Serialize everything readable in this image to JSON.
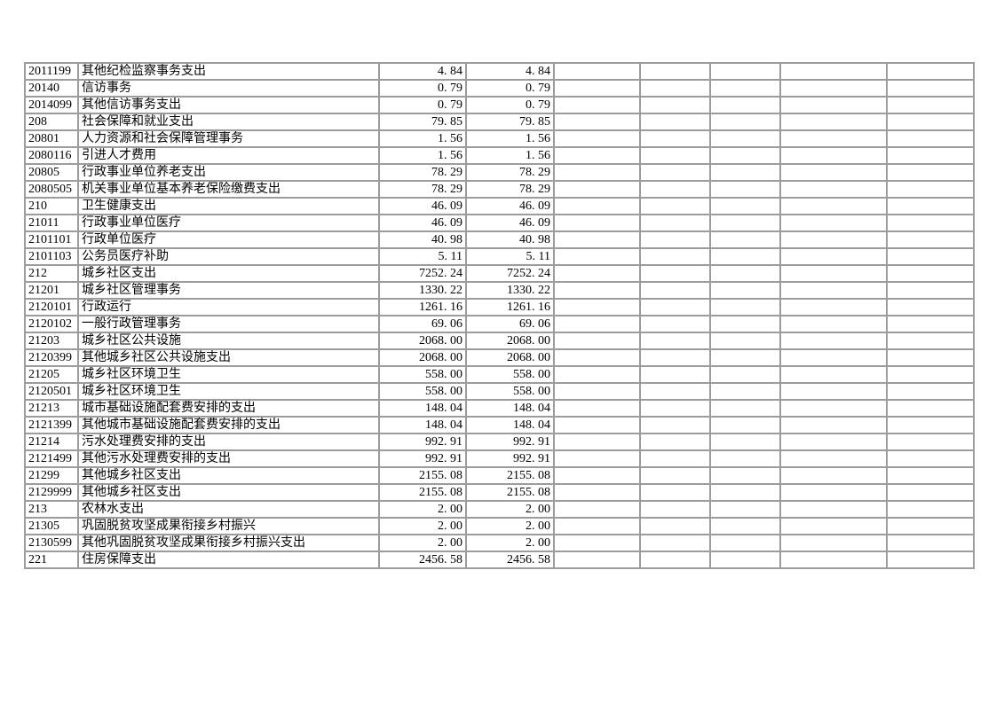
{
  "page": {
    "background_color": "#ffffff"
  },
  "table": {
    "grid_color": "#9c9c9c",
    "text_color": "#000000",
    "empty_column_count": 5,
    "rows": [
      {
        "code": "2011199",
        "name": "其他纪检监察事务支出",
        "amount1": "4.84",
        "amount2": "4.84"
      },
      {
        "code": "20140",
        "name": "信访事务",
        "amount1": "0.79",
        "amount2": "0.79"
      },
      {
        "code": "2014099",
        "name": "其他信访事务支出",
        "amount1": "0.79",
        "amount2": "0.79"
      },
      {
        "code": "208",
        "name": "社会保障和就业支出",
        "amount1": "79.85",
        "amount2": "79.85"
      },
      {
        "code": "20801",
        "name": "人力资源和社会保障管理事务",
        "amount1": "1.56",
        "amount2": "1.56"
      },
      {
        "code": "2080116",
        "name": "引进人才费用",
        "amount1": "1.56",
        "amount2": "1.56"
      },
      {
        "code": "20805",
        "name": "行政事业单位养老支出",
        "amount1": "78.29",
        "amount2": "78.29"
      },
      {
        "code": "2080505",
        "name": "机关事业单位基本养老保险缴费支出",
        "amount1": "78.29",
        "amount2": "78.29"
      },
      {
        "code": "210",
        "name": "卫生健康支出",
        "amount1": "46.09",
        "amount2": "46.09"
      },
      {
        "code": "21011",
        "name": "行政事业单位医疗",
        "amount1": "46.09",
        "amount2": "46.09"
      },
      {
        "code": "2101101",
        "name": "行政单位医疗",
        "amount1": "40.98",
        "amount2": "40.98"
      },
      {
        "code": "2101103",
        "name": "公务员医疗补助",
        "amount1": "5.11",
        "amount2": "5.11"
      },
      {
        "code": "212",
        "name": "城乡社区支出",
        "amount1": "7252.24",
        "amount2": "7252.24"
      },
      {
        "code": "21201",
        "name": "城乡社区管理事务",
        "amount1": "1330.22",
        "amount2": "1330.22"
      },
      {
        "code": "2120101",
        "name": "行政运行",
        "amount1": "1261.16",
        "amount2": "1261.16"
      },
      {
        "code": "2120102",
        "name": "一般行政管理事务",
        "amount1": "69.06",
        "amount2": "69.06"
      },
      {
        "code": "21203",
        "name": "城乡社区公共设施",
        "amount1": "2068.00",
        "amount2": "2068.00"
      },
      {
        "code": "2120399",
        "name": "其他城乡社区公共设施支出",
        "amount1": "2068.00",
        "amount2": "2068.00"
      },
      {
        "code": "21205",
        "name": "城乡社区环境卫生",
        "amount1": "558.00",
        "amount2": "558.00"
      },
      {
        "code": "2120501",
        "name": "城乡社区环境卫生",
        "amount1": "558.00",
        "amount2": "558.00"
      },
      {
        "code": "21213",
        "name": "城市基础设施配套费安排的支出",
        "amount1": "148.04",
        "amount2": "148.04"
      },
      {
        "code": "2121399",
        "name": "其他城市基础设施配套费安排的支出",
        "amount1": "148.04",
        "amount2": "148.04"
      },
      {
        "code": "21214",
        "name": "污水处理费安排的支出",
        "amount1": "992.91",
        "amount2": "992.91"
      },
      {
        "code": "2121499",
        "name": "其他污水处理费安排的支出",
        "amount1": "992.91",
        "amount2": "992.91"
      },
      {
        "code": "21299",
        "name": "其他城乡社区支出",
        "amount1": "2155.08",
        "amount2": "2155.08"
      },
      {
        "code": "2129999",
        "name": "其他城乡社区支出",
        "amount1": "2155.08",
        "amount2": "2155.08"
      },
      {
        "code": "213",
        "name": "农林水支出",
        "amount1": "2.00",
        "amount2": "2.00"
      },
      {
        "code": "21305",
        "name": "巩固脱贫攻坚成果衔接乡村振兴",
        "amount1": "2.00",
        "amount2": "2.00"
      },
      {
        "code": "2130599",
        "name": "其他巩固脱贫攻坚成果衔接乡村振兴支出",
        "amount1": "2.00",
        "amount2": "2.00"
      },
      {
        "code": "221",
        "name": "住房保障支出",
        "amount1": "2456.58",
        "amount2": "2456.58"
      }
    ]
  }
}
